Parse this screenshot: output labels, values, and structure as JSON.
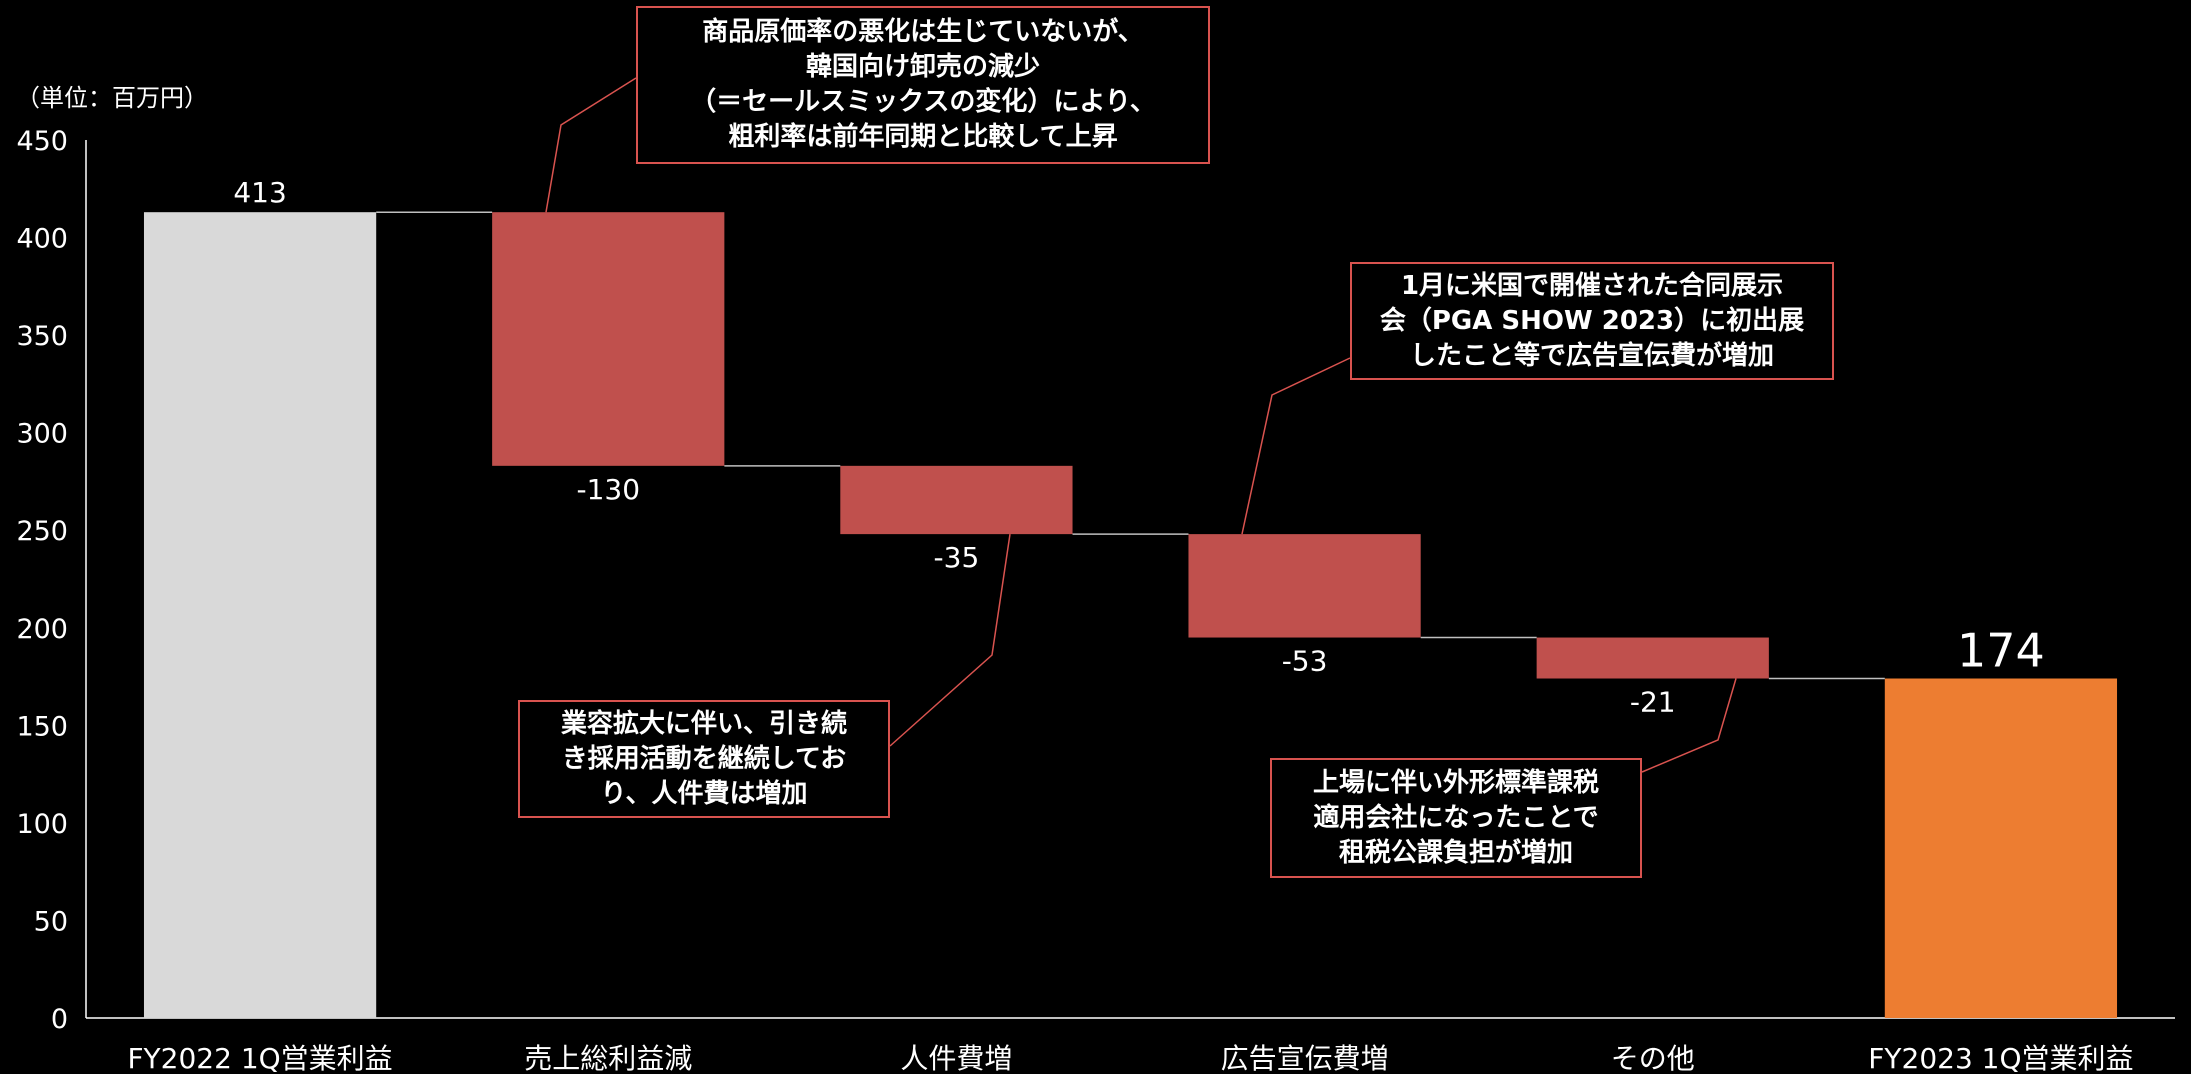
{
  "unit_label": "（単位：百万円）",
  "chart_data": {
    "type": "waterfall",
    "ylim": [
      0,
      450
    ],
    "yticks": [
      0,
      50,
      100,
      150,
      200,
      250,
      300,
      350,
      400,
      450
    ],
    "categories": [
      "FY2022 1Q営業利益",
      "売上総利益減",
      "人件費増",
      "広告宣伝費増",
      "その他",
      "FY2023 1Q営業利益"
    ],
    "values": [
      413,
      -130,
      -35,
      -53,
      -21,
      174
    ],
    "labels": [
      "413",
      "-130",
      "-35",
      "-53",
      "-21",
      "174"
    ],
    "kinds": [
      "total",
      "delta",
      "delta",
      "delta",
      "delta",
      "total"
    ],
    "colors": {
      "start": "#d9d9d9",
      "decrease": "#c0504d",
      "end": "#ed7d31",
      "connector": "#bfbfbf",
      "axis": "#ffffff",
      "callout_border": "#d9534f"
    }
  },
  "callouts": [
    {
      "id": "gross-profit",
      "lines": [
        "商品原価率の悪化は生じていないが、",
        "韓国向け卸売の減少",
        "（＝セールスミックスの変化）により、",
        "粗利率は前年同期と比較して上昇"
      ]
    },
    {
      "id": "advertising",
      "lines": [
        "1月に米国で開催された合同展示",
        "会（PGA SHOW 2023）に初出展",
        "したこと等で広告宣伝費が増加"
      ]
    },
    {
      "id": "personnel",
      "lines": [
        "業容拡大に伴い、引き続",
        "き採用活動を継続してお",
        "り、人件費は増加"
      ]
    },
    {
      "id": "other",
      "lines": [
        "上場に伴い外形標準課税",
        "適用会社になったことで",
        "租税公課負担が増加"
      ]
    }
  ]
}
